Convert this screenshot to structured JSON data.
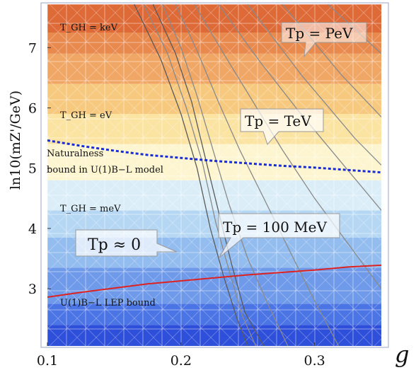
{
  "chart_data": {
    "type": "line",
    "xlabel": "g",
    "ylabel": "ln10(mZ'/GeV)",
    "xlim": [
      0.1,
      0.35
    ],
    "ylim": [
      2.05,
      7.72
    ],
    "x_ticks": [
      "0.1",
      "0.2",
      "0.3"
    ],
    "y_ticks": [
      "3",
      "4",
      "5",
      "6",
      "7"
    ],
    "x_tick_values": [
      0.1,
      0.2,
      0.3
    ],
    "y_tick_values": [
      3,
      4,
      5,
      6,
      7
    ],
    "grid": true,
    "band_colors": [
      "#2e4fd9",
      "#4b74e4",
      "#6f9aea",
      "#93bcef",
      "#b6d7f4",
      "#dbeef8",
      "#fdf5cf",
      "#fbe3a2",
      "#f7c97f",
      "#f0a766",
      "#e8894e",
      "#de6a38"
    ],
    "band_edges": [
      2.05,
      2.4,
      2.75,
      3.35,
      3.85,
      4.3,
      4.8,
      5.4,
      5.9,
      6.4,
      6.9,
      7.25,
      7.72
    ],
    "region_labels": {
      "kev": "T_GH = keV",
      "ev": "T_GH = eV",
      "mev": "T_GH = meV",
      "naturalness_line1": "Naturalness",
      "naturalness_line2": "bound in U(1)B−L model",
      "lep": "U(1)B−L LEP bound"
    },
    "callouts": {
      "pev": "Tp = PeV",
      "tev": "Tp = TeV",
      "mev100": "Tp = 100 MeV",
      "zero": "Tp ≈ 0"
    },
    "series": [
      {
        "name": "U(1)B−L LEP bound",
        "color": "#dd2222",
        "style": "solid",
        "x": [
          0.1,
          0.125,
          0.15,
          0.175,
          0.2,
          0.225,
          0.25,
          0.275,
          0.3,
          0.325,
          0.35
        ],
        "y": [
          2.86,
          2.94,
          3.01,
          3.08,
          3.13,
          3.18,
          3.23,
          3.27,
          3.31,
          3.36,
          3.39
        ]
      },
      {
        "name": "Naturalness bound in U(1)B−L model",
        "color": "#1a2cd6",
        "style": "dotted",
        "x": [
          0.1,
          0.125,
          0.15,
          0.175,
          0.2,
          0.225,
          0.25,
          0.275,
          0.3,
          0.325,
          0.35
        ],
        "y": [
          5.46,
          5.37,
          5.29,
          5.22,
          5.17,
          5.12,
          5.08,
          5.04,
          5.01,
          4.97,
          4.93
        ]
      }
    ],
    "contours": [
      {
        "color": "#5a5a5a",
        "x": [
          0.165,
          0.185,
          0.2,
          0.212,
          0.222,
          0.232,
          0.242,
          0.25
        ],
        "y": [
          7.72,
          6.8,
          5.9,
          5.0,
          4.0,
          3.2,
          2.5,
          2.05
        ]
      },
      {
        "color": "#8a8a8a",
        "x": [
          0.172,
          0.19,
          0.204,
          0.216,
          0.226,
          0.236,
          0.246,
          0.256
        ],
        "y": [
          7.72,
          6.9,
          6.0,
          5.1,
          4.1,
          3.3,
          2.55,
          2.05
        ]
      },
      {
        "color": "#5a5a5a",
        "x": [
          0.179,
          0.196,
          0.208,
          0.219,
          0.229,
          0.238,
          0.248,
          0.262
        ],
        "y": [
          7.72,
          6.9,
          6.1,
          5.1,
          4.2,
          3.4,
          2.6,
          2.05
        ]
      },
      {
        "color": "#8a8a8a",
        "x": [
          0.186,
          0.2,
          0.212,
          0.224,
          0.236,
          0.25,
          0.266,
          0.28
        ],
        "y": [
          7.72,
          7.0,
          6.2,
          5.3,
          4.4,
          3.5,
          2.7,
          2.05
        ]
      },
      {
        "color": "#8a8a8a",
        "x": [
          0.196,
          0.212,
          0.228,
          0.244,
          0.262,
          0.282,
          0.3,
          0.318
        ],
        "y": [
          7.72,
          6.95,
          6.1,
          5.3,
          4.5,
          3.6,
          2.8,
          2.05
        ]
      },
      {
        "color": "#8a8a8a",
        "x": [
          0.21,
          0.232,
          0.254,
          0.276,
          0.3,
          0.33,
          0.35
        ],
        "y": [
          7.72,
          6.9,
          6.1,
          5.3,
          4.5,
          3.6,
          3.0
        ]
      },
      {
        "color": "#8a8a8a",
        "x": [
          0.228,
          0.258,
          0.288,
          0.318,
          0.35
        ],
        "y": [
          7.72,
          6.8,
          5.95,
          5.15,
          4.3
        ]
      },
      {
        "color": "#8a8a8a",
        "x": [
          0.25,
          0.29,
          0.33,
          0.35
        ],
        "y": [
          7.72,
          6.55,
          5.5,
          5.05
        ]
      },
      {
        "color": "#8a8a8a",
        "x": [
          0.276,
          0.32,
          0.35
        ],
        "y": [
          7.72,
          6.55,
          5.85
        ]
      },
      {
        "color": "#8a8a8a",
        "x": [
          0.31,
          0.35
        ],
        "y": [
          7.72,
          6.9
        ]
      }
    ]
  }
}
